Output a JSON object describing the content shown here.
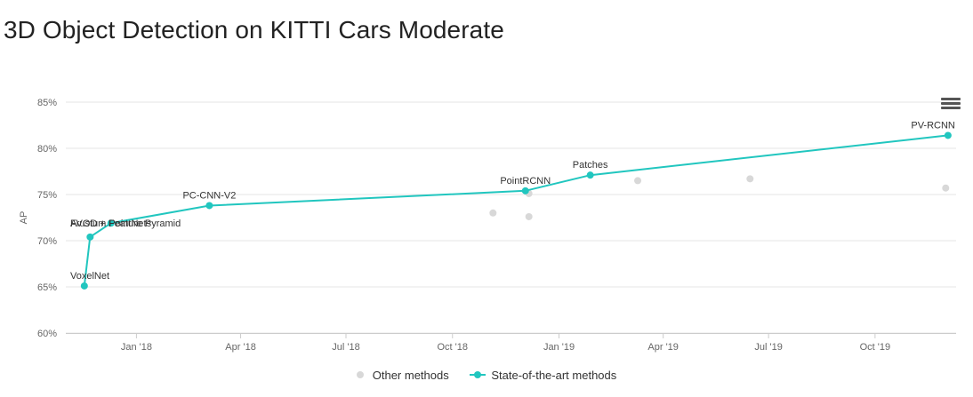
{
  "title": "3D Object Detection on KITTI Cars Moderate",
  "colors": {
    "sota": "#21c6bf",
    "other": "#d8d8d8",
    "grid": "#e6e6e6",
    "axis_text": "#666666"
  },
  "menu": {
    "icon": "hamburger-menu-icon"
  },
  "legend": {
    "other_label": "Other methods",
    "sota_label": "State-of-the-art methods"
  },
  "chart_data": {
    "type": "scatter",
    "ylabel": "AP",
    "xlabel": "",
    "ylim": [
      60,
      85
    ],
    "xlim": [
      "2017-11-01",
      "2019-12-10"
    ],
    "y_ticks": [
      60,
      65,
      70,
      75,
      80,
      85
    ],
    "y_tick_labels": [
      "60%",
      "65%",
      "70%",
      "75%",
      "80%",
      "85%"
    ],
    "x_ticks": [
      "2018-01-01",
      "2018-04-01",
      "2018-07-01",
      "2018-10-01",
      "2019-01-01",
      "2019-04-01",
      "2019-07-01",
      "2019-10-01"
    ],
    "x_tick_labels": [
      "Jan '18",
      "Apr '18",
      "Jul '18",
      "Oct '18",
      "Jan '19",
      "Apr '19",
      "Jul '19",
      "Oct '19"
    ],
    "grid": true,
    "legend_position": "bottom",
    "series": [
      {
        "name": "State-of-the-art methods",
        "points": [
          {
            "date": "2017-11-17",
            "value": 65.1,
            "label": "VoxelNet"
          },
          {
            "date": "2017-11-22",
            "value": 70.4,
            "label": "Frustum PointNets"
          },
          {
            "date": "2017-12-10",
            "value": 71.9,
            "label": "AVOD + Feature Pyramid"
          },
          {
            "date": "2018-03-05",
            "value": 73.8,
            "label": "PC-CNN-V2"
          },
          {
            "date": "2018-12-03",
            "value": 75.4,
            "label": "PointRCNN"
          },
          {
            "date": "2019-01-28",
            "value": 77.1,
            "label": "Patches"
          },
          {
            "date": "2019-12-03",
            "value": 81.4,
            "label": "PV-RCNN"
          }
        ]
      },
      {
        "name": "Other methods",
        "points": [
          {
            "date": "2018-11-05",
            "value": 73.0
          },
          {
            "date": "2018-12-06",
            "value": 75.1
          },
          {
            "date": "2018-12-06",
            "value": 72.6
          },
          {
            "date": "2019-03-10",
            "value": 76.5
          },
          {
            "date": "2019-06-15",
            "value": 76.7
          },
          {
            "date": "2019-12-01",
            "value": 75.7
          }
        ]
      }
    ]
  }
}
